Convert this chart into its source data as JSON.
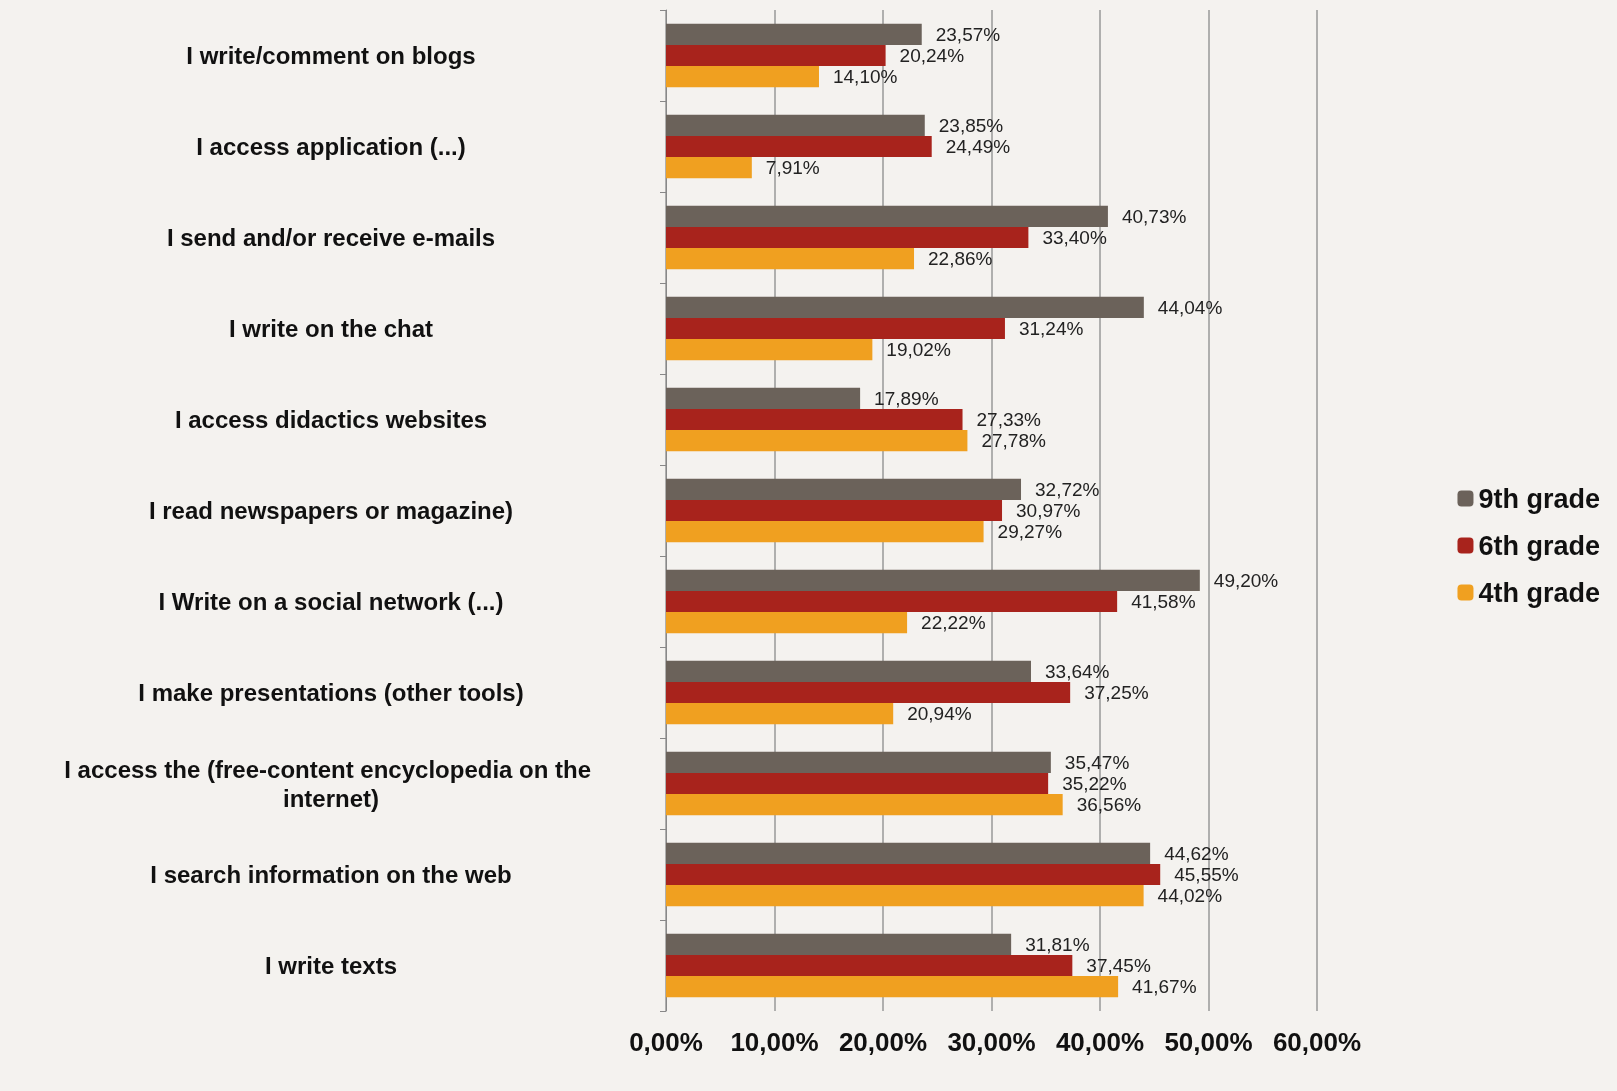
{
  "chart_data": {
    "type": "bar",
    "orientation": "horizontal",
    "categories": [
      "I write/comment on blogs",
      "I access application (...)",
      "I send and/or receive e-mails",
      "I write on the chat",
      "I access didactics websites",
      "I read newspapers or magazine)",
      "I Write on a social network (...)",
      "I make presentations (other tools)",
      "I access the (free-content encyclopedia on the internet)",
      "I search information on the web",
      "I write texts"
    ],
    "series": [
      {
        "name": "9th grade",
        "color": "#6b625a",
        "values": [
          23.57,
          23.85,
          40.73,
          44.04,
          17.89,
          32.72,
          49.2,
          33.64,
          35.47,
          44.62,
          31.81
        ],
        "value_labels": [
          "23,57%",
          "23,85%",
          "40,73%",
          "44,04%",
          "17,89%",
          "32,72%",
          "49,20%",
          "33,64%",
          "35,47%",
          "44,62%",
          "31,81%"
        ]
      },
      {
        "name": "6th grade",
        "color": "#a8231c",
        "values": [
          20.24,
          24.49,
          33.4,
          31.24,
          27.33,
          30.97,
          41.58,
          37.25,
          35.22,
          45.55,
          37.45
        ],
        "value_labels": [
          "20,24%",
          "24,49%",
          "33,40%",
          "31,24%",
          "27,33%",
          "30,97%",
          "41,58%",
          "37,25%",
          "35,22%",
          "45,55%",
          "37,45%"
        ]
      },
      {
        "name": "4th grade",
        "color": "#f0a020",
        "values": [
          14.1,
          7.91,
          22.86,
          19.02,
          27.78,
          29.27,
          22.22,
          20.94,
          36.56,
          44.02,
          41.67
        ],
        "value_labels": [
          "14,10%",
          "7,91%",
          "22,86%",
          "19,02%",
          "27,78%",
          "29,27%",
          "22,22%",
          "20,94%",
          "36,56%",
          "44,02%",
          "41,67%"
        ]
      }
    ],
    "xlim": [
      0,
      60
    ],
    "xticks": [
      {
        "value": 0,
        "label": "0,00%"
      },
      {
        "value": 10,
        "label": "10,00%"
      },
      {
        "value": 20,
        "label": "20,00%"
      },
      {
        "value": 30,
        "label": "30,00%"
      },
      {
        "value": 40,
        "label": "40,00%"
      },
      {
        "value": 50,
        "label": "50,00%"
      },
      {
        "value": 60,
        "label": "60,00%"
      }
    ],
    "grid": "x",
    "legend": "right"
  }
}
